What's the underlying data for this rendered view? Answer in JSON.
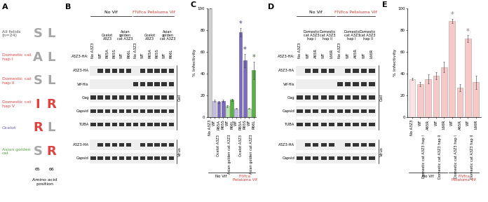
{
  "panels": {
    "A": {
      "letter": "A",
      "rows": [
        {
          "label": "All felids (n=24)",
          "color": "#555555",
          "residues": [
            "S",
            "L"
          ],
          "residue_colors": [
            "#a6a6a6",
            "#a6a6a6"
          ]
        },
        {
          "label": "Domestic cat hap I",
          "color": "#e0433f",
          "residues": [
            "A",
            "L"
          ],
          "residue_colors": [
            "#a6a6a6",
            "#a6a6a6"
          ]
        },
        {
          "label": "Domestic cat hap II",
          "color": "#e0433f",
          "residues": [
            "S",
            "L"
          ],
          "residue_colors": [
            "#a6a6a6",
            "#a6a6a6"
          ]
        },
        {
          "label": "Domestic cat hap V",
          "color": "#e0433f",
          "residues": [
            "I",
            "R"
          ],
          "residue_colors": [
            "#e0433f",
            "#e0433f"
          ]
        },
        {
          "label": "Ocelot",
          "color": "#6b5bb0",
          "residues": [
            "R",
            "L"
          ],
          "residue_colors": [
            "#e0433f",
            "#a6a6a6"
          ]
        },
        {
          "label": "Asian golden cat",
          "color": "#4ea83e",
          "residues": [
            "S",
            "R"
          ],
          "residue_colors": [
            "#a6a6a6",
            "#e0433f"
          ]
        }
      ],
      "positions": [
        65,
        66
      ],
      "axis_label": "Amino acid position"
    },
    "B": {
      "letter": "B",
      "lane_header": "A3Z3-HA:",
      "groups": [
        "No Vif",
        "FIVfca Petaluma Vif"
      ],
      "lanes": [
        "No A3Z3",
        "WT",
        "R65A",
        "R65S",
        "WT",
        "R66L",
        "No A3Z3",
        "WT",
        "R65A",
        "R65S",
        "WT",
        "R66L"
      ],
      "lane_group": [
        "No Vif",
        "No Vif",
        "No Vif",
        "No Vif",
        "No Vif",
        "No Vif",
        "FIVfca Petaluma Vif",
        "FIVfca Petaluma Vif",
        "FIVfca Petaluma Vif",
        "FIVfca Petaluma Vif",
        "FIVfca Petaluma Vif",
        "FIVfca Petaluma Vif"
      ],
      "lane_species": [
        null,
        "Ocelot A3Z3",
        "Ocelot A3Z3",
        "Ocelot A3Z3",
        "Asian golden cat A3Z3",
        "Asian golden cat A3Z3",
        null,
        "Ocelot A3Z3",
        "Ocelot A3Z3",
        "Ocelot A3Z3",
        "Asian golden cat A3Z3",
        "Asian golden cat A3Z3"
      ],
      "cell_rows": [
        "A3Z3-HA",
        "Vif-His",
        "Gag",
        "Capsid",
        "TUBA"
      ],
      "virus_rows": [
        "A3Z3-HA",
        "Capsid"
      ],
      "cell_label": "Cell",
      "virus_label": "Virus"
    },
    "D": {
      "letter": "D",
      "lane_header": "A3Z3-HA:",
      "groups": [
        "No Vif",
        "FIVfca Petaluma Vif"
      ],
      "lanes": [
        "No A3Z3",
        "WT",
        "A65R",
        "WT",
        "L66R",
        "No A3Z3",
        "WT",
        "A65R",
        "WT",
        "L66R"
      ],
      "lane_group": [
        "No Vif",
        "No Vif",
        "No Vif",
        "No Vif",
        "No Vif",
        "FIVfca Petaluma Vif",
        "FIVfca Petaluma Vif",
        "FIVfca Petaluma Vif",
        "FIVfca Petaluma Vif",
        "FIVfca Petaluma Vif"
      ],
      "lane_species": [
        null,
        "Domestic cat A3Z3 hap I",
        "Domestic cat A3Z3 hap I",
        "Domestic cat A3Z3 hap II",
        "Domestic cat A3Z3 hap II",
        null,
        "Domestic cat A3Z3 hap I",
        "Domestic cat A3Z3 hap I",
        "Domestic cat A3Z3 hap II",
        "Domestic cat A3Z3 hap II"
      ],
      "cell_rows": [
        "A3Z3-HA",
        "Vif-His",
        "Gag",
        "Capsid",
        "TUBA"
      ],
      "virus_rows": [
        "A3Z3-HA",
        "Capsid"
      ],
      "cell_label": "Cell",
      "virus_label": "Virus"
    }
  },
  "chart_data": [
    {
      "type": "bar",
      "panel_label": "C",
      "categories": [
        "No A3Z3",
        "WT",
        "R65A",
        "R65S",
        "WT",
        "R66L",
        "WT",
        "R65A",
        "R65S",
        "WT",
        "R66L"
      ],
      "values": [
        100,
        15,
        14,
        15,
        10,
        16,
        8,
        78,
        52,
        8,
        43
      ],
      "errors": [
        0,
        1,
        1,
        1,
        1,
        1,
        0.5,
        4,
        6,
        0.5,
        8
      ],
      "colors": [
        "#cfcfcf",
        "#c4bde3",
        "#7c6cbf",
        "#7c6cbf",
        "#bfe3b3",
        "#5cb04a",
        "#c4bde3",
        "#7c6cbf",
        "#7c6cbf",
        "#bfe3b3",
        "#5cb04a"
      ],
      "annotations": [
        null,
        null,
        null,
        null,
        null,
        null,
        null,
        "*",
        "*",
        null,
        "*"
      ],
      "species": [
        null,
        "Ocelot A3Z3",
        "Ocelot A3Z3",
        "Ocelot A3Z3",
        "Asian golden cat A3Z3",
        "Asian golden cat A3Z3",
        "Ocelot A3Z3",
        "Ocelot A3Z3",
        "Ocelot A3Z3",
        "Asian golden cat A3Z3",
        "Asian golden cat A3Z3"
      ],
      "group": [
        "No Vif",
        "No Vif",
        "No Vif",
        "No Vif",
        "No Vif",
        "No Vif",
        "FIVfca Petaluma Vif",
        "FIVfca Petaluma Vif",
        "FIVfca Petaluma Vif",
        "FIVfca Petaluma Vif",
        "FIVfca Petaluma Vif"
      ],
      "y_label": "% Infectivity",
      "ylim": [
        0,
        100
      ],
      "yticks": [
        0,
        20,
        40,
        60,
        80,
        100
      ]
    },
    {
      "type": "bar",
      "panel_label": "E",
      "categories": [
        "No A3Z3",
        "WT",
        "A65R",
        "WT",
        "L66R",
        "WT",
        "A65R",
        "WT",
        "L66R"
      ],
      "values": [
        35,
        30,
        35,
        38,
        46,
        88,
        27,
        72,
        32
      ],
      "errors": [
        1,
        2,
        4,
        3,
        5,
        2,
        3,
        3,
        6
      ],
      "colors": [
        "#fbe3e3",
        "#f6c9c9",
        "#f6c9c9",
        "#f6c9c9",
        "#f6c9c9",
        "#f6c9c9",
        "#f6c9c9",
        "#f6c9c9",
        "#f6c9c9"
      ],
      "annotations": [
        null,
        null,
        null,
        null,
        null,
        "*",
        null,
        "*",
        null
      ],
      "species": [
        null,
        "Domestic cat A3Z3 hap I",
        "Domestic cat A3Z3 hap I",
        "Domestic cat A3Z3 hap II",
        "Domestic cat A3Z3 hap II",
        "Domestic cat A3Z3 hap I",
        "Domestic cat A3Z3 hap I",
        "Domestic cat A3Z3 hap II",
        "Domestic cat A3Z3 hap II"
      ],
      "group": [
        "No Vif",
        "No Vif",
        "No Vif",
        "No Vif",
        "No Vif",
        "FIVfca Petaluma Vif",
        "FIVfca Petaluma Vif",
        "FIVfca Petaluma Vif",
        "FIVfca Petaluma Vif"
      ],
      "y_label": "% Infectivity",
      "ylim": [
        0,
        100
      ],
      "yticks": [
        0,
        20,
        40,
        60,
        80,
        100
      ]
    }
  ]
}
